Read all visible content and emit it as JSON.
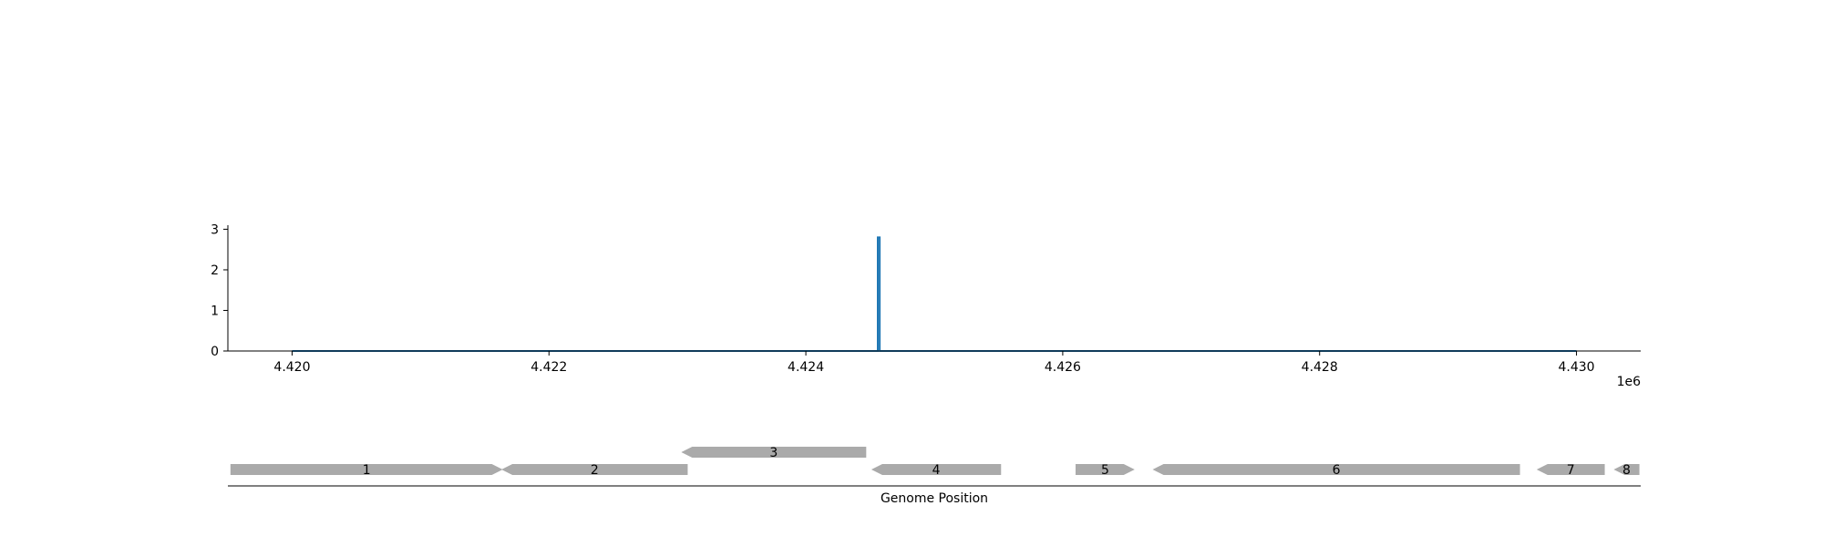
{
  "chart_data": [
    {
      "type": "line",
      "x_ticks": [
        4420000,
        4422000,
        4424000,
        4426000,
        4428000,
        4430000
      ],
      "x_tick_labels": [
        "4.420",
        "4.422",
        "4.424",
        "4.426",
        "4.428",
        "4.430"
      ],
      "x_offset_label": "1e6",
      "y_ticks": [
        0,
        1,
        2,
        3
      ],
      "y_tick_labels": [
        "0",
        "1",
        "2",
        "3"
      ],
      "xlim": [
        4419500,
        4430500
      ],
      "ylim": [
        0,
        3.1
      ],
      "grid": false,
      "series": [
        {
          "color": "#1f77b4",
          "x": [
            4420000,
            4424560,
            4424560,
            4424575,
            4424575,
            4430000
          ],
          "y": [
            0,
            0,
            2.8,
            2.8,
            0,
            0
          ]
        }
      ]
    },
    {
      "type": "gene-track",
      "xlabel": "Genome Position",
      "xlim": [
        4419500,
        4430500
      ],
      "feature_color": "#aaaaaa",
      "features": [
        {
          "label": "1",
          "start": 4419520,
          "end": 4421640,
          "strand": 1,
          "row": 0
        },
        {
          "label": "2",
          "start": 4421630,
          "end": 4423080,
          "strand": -1,
          "row": 0
        },
        {
          "label": "3",
          "start": 4423030,
          "end": 4424470,
          "strand": -1,
          "row": 1
        },
        {
          "label": "4",
          "start": 4424510,
          "end": 4425520,
          "strand": -1,
          "row": 0
        },
        {
          "label": "5",
          "start": 4426100,
          "end": 4426560,
          "strand": 1,
          "row": 0
        },
        {
          "label": "6",
          "start": 4426700,
          "end": 4429560,
          "strand": -1,
          "row": 0
        },
        {
          "label": "7",
          "start": 4429690,
          "end": 4430220,
          "strand": -1,
          "row": 0
        },
        {
          "label": "8",
          "start": 4430290,
          "end": 4430490,
          "strand": -1,
          "row": 0
        }
      ]
    }
  ]
}
